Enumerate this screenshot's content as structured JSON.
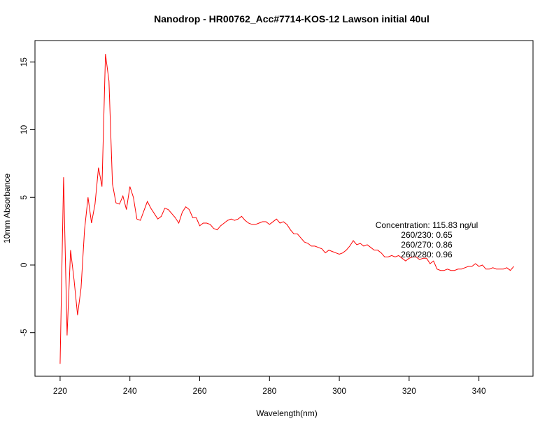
{
  "chart_data": {
    "type": "line",
    "title": "Nanodrop - HR00762_Acc#7714-KOS-12 Lawson initial 40ul",
    "x_label": "Wavelength(nm)",
    "y_label": "10mm Absorbance",
    "annotations": [
      "Concentration: 115.83 ng/ul",
      "260/230: 0.65",
      "260/270: 0.86",
      "260/280: 0.96"
    ],
    "x": [
      220,
      221,
      222,
      223,
      224,
      225,
      226,
      227,
      228,
      229,
      230,
      231,
      232,
      233,
      234,
      235,
      236,
      237,
      238,
      239,
      240,
      241,
      242,
      243,
      244,
      245,
      246,
      247,
      248,
      249,
      250,
      251,
      252,
      253,
      254,
      255,
      256,
      257,
      258,
      259,
      260,
      261,
      262,
      263,
      264,
      265,
      266,
      267,
      268,
      269,
      270,
      271,
      272,
      273,
      274,
      275,
      276,
      277,
      278,
      279,
      280,
      281,
      282,
      283,
      284,
      285,
      286,
      287,
      288,
      289,
      290,
      291,
      292,
      293,
      294,
      295,
      296,
      297,
      298,
      299,
      300,
      301,
      302,
      303,
      304,
      305,
      306,
      307,
      308,
      309,
      310,
      311,
      312,
      313,
      314,
      315,
      316,
      317,
      318,
      319,
      320,
      321,
      322,
      323,
      324,
      325,
      326,
      327,
      328,
      329,
      330,
      331,
      332,
      333,
      334,
      335,
      336,
      337,
      338,
      339,
      340,
      341,
      342,
      343,
      344,
      345,
      346,
      347,
      348,
      349,
      350
    ],
    "series": [
      {
        "name": "Absorbance",
        "color": "#ff0000",
        "values": [
          -7.3,
          6.5,
          -5.2,
          1.1,
          -1.1,
          -3.7,
          -1.7,
          2.6,
          5.0,
          3.1,
          4.5,
          7.2,
          5.8,
          15.6,
          13.6,
          6.0,
          4.6,
          4.5,
          5.1,
          4.1,
          5.8,
          5.0,
          3.4,
          3.3,
          4.0,
          4.7,
          4.2,
          3.8,
          3.4,
          3.6,
          4.2,
          4.1,
          3.8,
          3.5,
          3.1,
          3.9,
          4.3,
          4.1,
          3.5,
          3.5,
          2.9,
          3.1,
          3.1,
          3.0,
          2.7,
          2.6,
          2.9,
          3.1,
          3.3,
          3.4,
          3.3,
          3.4,
          3.6,
          3.3,
          3.1,
          3.0,
          3.0,
          3.1,
          3.2,
          3.2,
          3.0,
          3.2,
          3.4,
          3.1,
          3.2,
          3.0,
          2.6,
          2.3,
          2.3,
          2.0,
          1.7,
          1.6,
          1.4,
          1.4,
          1.3,
          1.2,
          0.9,
          1.1,
          1.0,
          0.9,
          0.8,
          0.9,
          1.1,
          1.4,
          1.8,
          1.5,
          1.6,
          1.4,
          1.5,
          1.3,
          1.1,
          1.1,
          0.9,
          0.6,
          0.6,
          0.7,
          0.6,
          0.7,
          0.5,
          0.3,
          0.5,
          0.6,
          0.6,
          0.4,
          0.5,
          0.5,
          0.1,
          0.3,
          -0.3,
          -0.4,
          -0.4,
          -0.3,
          -0.4,
          -0.4,
          -0.3,
          -0.3,
          -0.2,
          -0.1,
          -0.1,
          0.1,
          -0.1,
          0.0,
          -0.3,
          -0.3,
          -0.2,
          -0.3,
          -0.3,
          -0.3,
          -0.2,
          -0.4,
          -0.1
        ]
      }
    ],
    "xlim": [
      212.8,
      355.5
    ],
    "ylim": [
      -8.22,
      16.59
    ],
    "xticks": [
      220,
      240,
      260,
      280,
      300,
      320,
      340
    ],
    "yticks": [
      -5,
      0,
      5,
      10,
      15
    ]
  }
}
